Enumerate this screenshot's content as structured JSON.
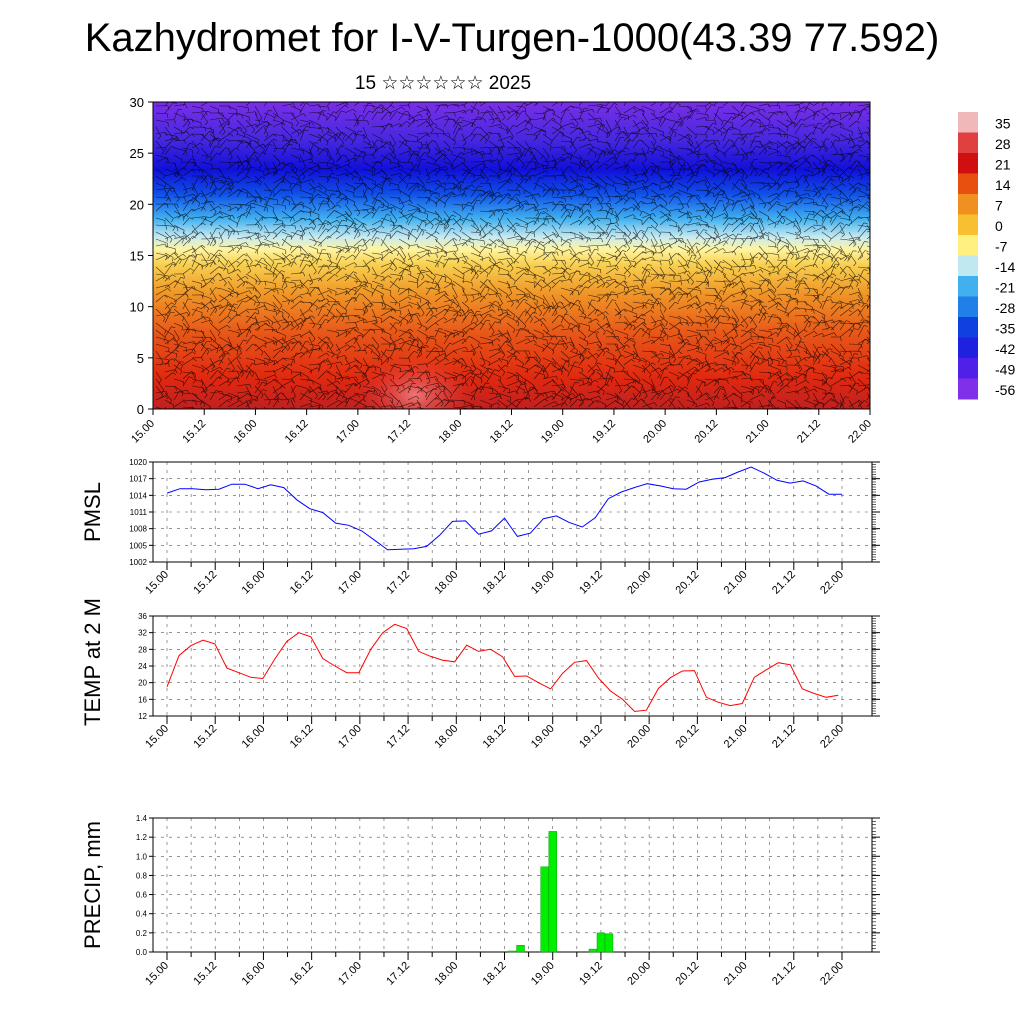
{
  "header": {
    "title": "Kazhydromet for I-V-Turgen-1000(43.39 77.592)",
    "subtitle": "15 ☆☆☆☆☆☆ 2025"
  },
  "time_labels": [
    "15.00",
    "15.12",
    "16.00",
    "16.12",
    "17.00",
    "17.12",
    "18.00",
    "18.12",
    "19.00",
    "19.12",
    "20.00",
    "20.12",
    "21.00",
    "21.12",
    "22.00"
  ],
  "chart_data": [
    {
      "type": "heatmap",
      "name": "temperature-wind-profile",
      "ylim": [
        0,
        30
      ],
      "yticks": [
        "0",
        "5",
        "10",
        "15",
        "20",
        "25",
        "30"
      ],
      "x": [
        "15.00",
        "15.12",
        "16.00",
        "16.12",
        "17.00",
        "17.12",
        "18.00",
        "18.12",
        "19.00",
        "19.12",
        "20.00",
        "20.12",
        "21.00",
        "21.12",
        "22.00"
      ],
      "colorbar": {
        "labels": [
          "35",
          "28",
          "21",
          "14",
          "7",
          "0",
          "-7",
          "-14",
          "-21",
          "-28",
          "-35",
          "-42",
          "-49",
          "-56"
        ],
        "stops": [
          "#f0b8b8",
          "#e04040",
          "#d01010",
          "#e85010",
          "#f09020",
          "#f8c030",
          "#fff080",
          "#c0e8f0",
          "#40b0f0",
          "#2080e8",
          "#1040e0",
          "#2020e0",
          "#5020e8",
          "#8030e8"
        ]
      }
    },
    {
      "type": "line",
      "name": "PMSL",
      "ylabel": "PMSL",
      "ylim": [
        1002,
        1020
      ],
      "yticks": [
        "1002",
        "1005",
        "1008",
        "1011",
        "1014",
        "1017",
        "1020"
      ],
      "color": "#0000ff",
      "x_start": 0,
      "x_step": 0.0833,
      "values": [
        1014.4,
        1015.2,
        1015.2,
        1015.0,
        1015.1,
        1016.0,
        1016.0,
        1015.2,
        1015.9,
        1015.4,
        1013.2,
        1011.6,
        1010.9,
        1009.0,
        1008.6,
        1007.6,
        1005.9,
        1004.2,
        1004.3,
        1004.4,
        1004.8,
        1006.8,
        1009.3,
        1009.4,
        1007.0,
        1007.6,
        1009.9,
        1006.6,
        1007.2,
        1009.8,
        1010.3,
        1009.1,
        1008.3,
        1010.0,
        1013.4,
        1014.6,
        1015.4,
        1016.1,
        1015.7,
        1015.2,
        1015.1,
        1016.4,
        1016.9,
        1017.2,
        1018.2,
        1019.1,
        1018.0,
        1016.7,
        1016.2,
        1016.6,
        1015.7,
        1014.2,
        1014.2
      ]
    },
    {
      "type": "line",
      "name": "TEMP at 2 M",
      "ylabel": "TEMP at 2 M",
      "ylim": [
        12,
        36
      ],
      "yticks": [
        "12",
        "16",
        "20",
        "24",
        "28",
        "32",
        "36"
      ],
      "color": "#ff0000",
      "x_start": 0,
      "x_step": 0.0833,
      "values": [
        19.0,
        26.5,
        28.9,
        30.2,
        29.3,
        23.5,
        22.4,
        21.3,
        21.0,
        25.7,
        29.9,
        32.0,
        31.0,
        25.8,
        24.0,
        22.4,
        22.4,
        28.0,
        32.0,
        34.0,
        33.0,
        27.5,
        26.3,
        25.4,
        25.0,
        29.0,
        27.5,
        28.0,
        26.2,
        21.5,
        21.6,
        20.0,
        18.5,
        22.2,
        24.9,
        25.3,
        21.1,
        18.0,
        16.0,
        13.1,
        13.4,
        18.6,
        21.2,
        22.8,
        22.9,
        16.5,
        15.3,
        14.5,
        15.0,
        21.3,
        23.1,
        24.8,
        24.3,
        18.5,
        17.4,
        16.5,
        17.0
      ]
    },
    {
      "type": "bar",
      "name": "PRECIP, mm",
      "ylabel": "PRECIP, mm",
      "ylim": [
        0,
        1.4
      ],
      "yticks": [
        "0.0",
        "0.2",
        "0.4",
        "0.6",
        "0.8",
        "1.0",
        "1.2",
        "1.4"
      ],
      "color": "#00ee00",
      "bars": [
        {
          "x": 3.5833,
          "value": 0.01
        },
        {
          "x": 3.6667,
          "value": 0.07
        },
        {
          "x": 3.9167,
          "value": 0.89
        },
        {
          "x": 4.0,
          "value": 1.26
        },
        {
          "x": 4.4167,
          "value": 0.03
        },
        {
          "x": 4.5,
          "value": 0.2
        },
        {
          "x": 4.5833,
          "value": 0.19
        }
      ]
    }
  ]
}
